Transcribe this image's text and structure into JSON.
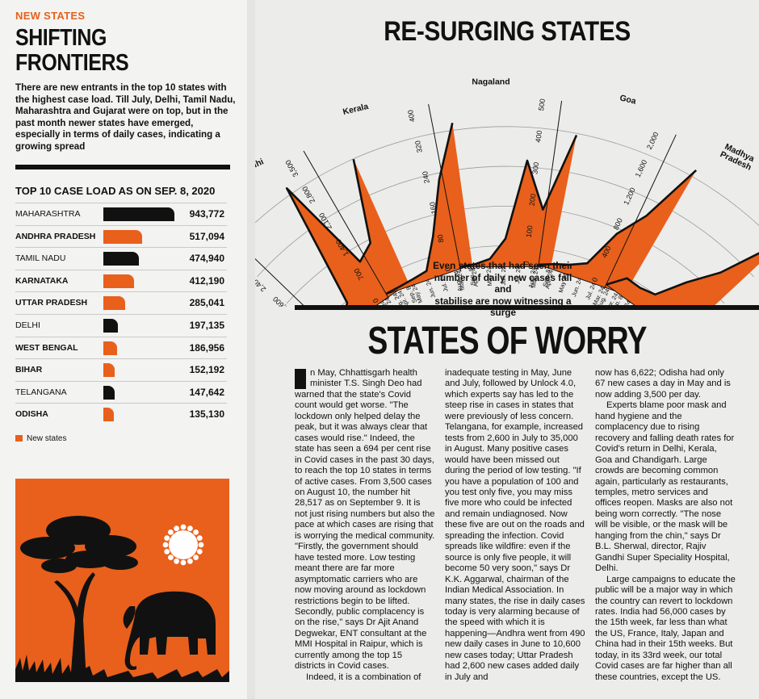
{
  "left": {
    "kicker": "NEW STATES",
    "headline_1": "SHIFTING",
    "headline_2": "FRONTIERS",
    "intro": "There are new entrants in the top 10 states with the highest case load. Till July, Delhi, Tamil Nadu, Maharashtra and Gujarat were on top, but in the past month newer states have emerged, especially in terms of daily cases, indicating a growing spread",
    "table_title_bold": "TOP 10",
    "table_title_rest": " CASE LOAD AS ON SEP. 8, 2020",
    "rows": [
      {
        "state": "MAHARASHTRA",
        "value": "943,772",
        "cases": 943772,
        "new": false
      },
      {
        "state": "ANDHRA PRADESH",
        "value": "517,094",
        "cases": 517094,
        "new": true
      },
      {
        "state": "TAMIL NADU",
        "value": "474,940",
        "cases": 474940,
        "new": false
      },
      {
        "state": "KARNATAKA",
        "value": "412,190",
        "cases": 412190,
        "new": true
      },
      {
        "state": "UTTAR PRADESH",
        "value": "285,041",
        "cases": 285041,
        "new": true
      },
      {
        "state": "DELHI",
        "value": "197,135",
        "cases": 197135,
        "new": false
      },
      {
        "state": "WEST BENGAL",
        "value": "186,956",
        "cases": 186956,
        "new": true
      },
      {
        "state": "BIHAR",
        "value": "152,192",
        "cases": 152192,
        "new": true
      },
      {
        "state": "TELANGANA",
        "value": "147,642",
        "cases": 147642,
        "new": false
      },
      {
        "state": "ODISHA",
        "value": "135,130",
        "cases": 135130,
        "new": true
      }
    ],
    "legend": "New states"
  },
  "colors": {
    "orange": "#e8601c",
    "black": "#111111"
  },
  "right": {
    "title": "RE-SURGING STATES",
    "caption_1": "Even states that had seen their",
    "caption_2": "number of daily new cases fall and",
    "caption_3": "stabilise are now witnessing a surge",
    "title2": "STATES OF WORRY",
    "article_col1": [
      "n May, Chhattisgarh health minister T.S. Singh Deo had warned that the state's Covid count would get worse. \"The lockdown only helped delay the peak, but it was always clear that cases would rise.\" Indeed, the state has seen a 694 per cent rise in Covid cases in the past 30 days, to reach the top 10 states in terms of active cases. From 3,500 cases on August 10, the number hit 28,517 as on September 9. It is not just rising numbers but also the pace at which cases are rising that is worrying the medical community. \"Firstly, the government should have tested more. Low testing meant there are far more asymptomatic carriers who are now moving around as lockdown restrictions begin to be lifted. Secondly, public complacency is on the rise,\" says Dr Ajit Anand Degwekar, ENT consultant at the MMI Hospital in Raipur, which is currently among the top 15 districts in Covid cases.",
      "Indeed, it is a combination of"
    ],
    "article_col2": [
      "inadequate testing in May, June and July, followed by Unlock 4.0, which experts say has led to the steep rise in cases in states that were previously of less concern. Telangana, for example, increased tests from 2,600 in July to 35,000 in August. Many positive cases would have been missed out during the period of low testing. \"If you have a population of 100 and you test only five, you may miss five more who could be infected and remain undiagnosed. Now these five are out on the roads and spreading the infection. Covid spreads like wildfire: even if the source is only five people, it will become 50 very soon,\" says Dr K.K. Aggarwal, chairman of the Indian Medical Association. In many states, the rise in daily cases today is very alarming because of the speed with which it is happening—Andhra went from 490 new daily cases in June to 10,600 new cases today; Uttar Pradesh had 2,600 new cases added daily in July and"
    ],
    "article_col3": [
      "now has 6,622; Odisha had only 67 new cases a day in May and is now adding 3,500 per day.",
      "Experts blame poor mask and hand hygiene and the complacency due to rising recovery and falling death rates for Covid's return in Delhi, Kerala, Goa and Chandigarh. Large crowds are becoming common again, particularly as restaurants, temples, metro services and offices reopen. Masks are also not being worn correctly. \"The nose will be visible, or the mask will be hanging from the chin,\" says Dr B.L. Sherwal, director, Rajiv Gandhi Super Speciality Hospital, Delhi.",
      "Large campaigns to educate the public will be a major way in which the country can revert to lockdown rates. India had 56,000 cases by the 15th week, far less than what the US, France, Italy, Japan and China had in their 15th weeks. But today, in its 33rd week, our total Covid cases are far higher than all these countries, except the US."
    ]
  },
  "chart_data": {
    "type": "area",
    "x": [
      "Mar. 24",
      "Apr. 24",
      "May 24",
      "Jun. 24",
      "Jul. 24",
      "Aug. 24",
      "Sep. 8"
    ],
    "panels": [
      {
        "name": "Delhi",
        "ticks": [
          0,
          800,
          1600,
          2400,
          3200,
          4000
        ],
        "ymax": 4400,
        "values": [
          30,
          100,
          400,
          3800,
          1100,
          1400,
          3600
        ]
      },
      {
        "name": "Kerala",
        "ticks": [
          0,
          700,
          1400,
          2100,
          2800,
          3500
        ],
        "ymax": 3700,
        "values": [
          10,
          10,
          40,
          100,
          800,
          2000,
          3200
        ]
      },
      {
        "name": "Nagaland",
        "ticks": [
          0,
          80,
          160,
          240,
          320,
          400
        ],
        "ymax": 420,
        "values": [
          0,
          0,
          10,
          60,
          260,
          140,
          340
        ]
      },
      {
        "name": "Goa",
        "ticks": [
          0,
          100,
          200,
          300,
          400,
          500
        ],
        "ymax": 520,
        "values": [
          0,
          10,
          20,
          40,
          160,
          250,
          450
        ]
      },
      {
        "name": "Madhya Pradesh",
        "ticks": [
          0,
          400,
          800,
          1200,
          1600,
          2000
        ],
        "ymax": 2200,
        "values": [
          0,
          200,
          180,
          220,
          600,
          1000,
          1900
        ]
      }
    ]
  }
}
